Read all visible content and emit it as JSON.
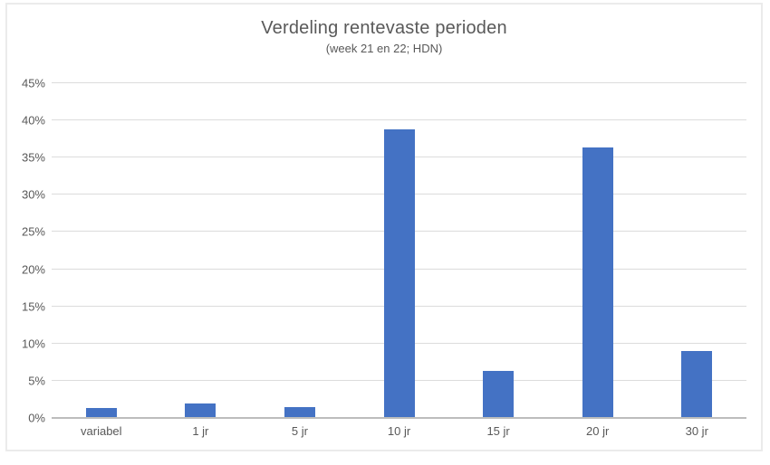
{
  "chart_data": {
    "type": "bar",
    "title": "Verdeling rentevaste perioden",
    "subtitle": "(week 21 en 22; HDN)",
    "categories": [
      "variabel",
      "1 jr",
      "5 jr",
      "10 jr",
      "15 jr",
      "20 jr",
      "30 jr"
    ],
    "values": [
      1.4,
      1.9,
      1.5,
      38.8,
      6.3,
      36.4,
      9.0
    ],
    "xlabel": "",
    "ylabel": "",
    "ylim": [
      0,
      45
    ],
    "ytick_step": 5,
    "ytick_labels": [
      "0%",
      "5%",
      "10%",
      "15%",
      "20%",
      "25%",
      "30%",
      "35%",
      "40%",
      "45%"
    ],
    "grid": "horizontal",
    "legend": "none",
    "colors": {
      "bar": "#4472C4",
      "text": "#595959",
      "gridline": "#DCDCDC",
      "axis_line": "#BDBDBD",
      "chart_border": "#EBEBEB",
      "background": "#FFFFFF"
    }
  }
}
